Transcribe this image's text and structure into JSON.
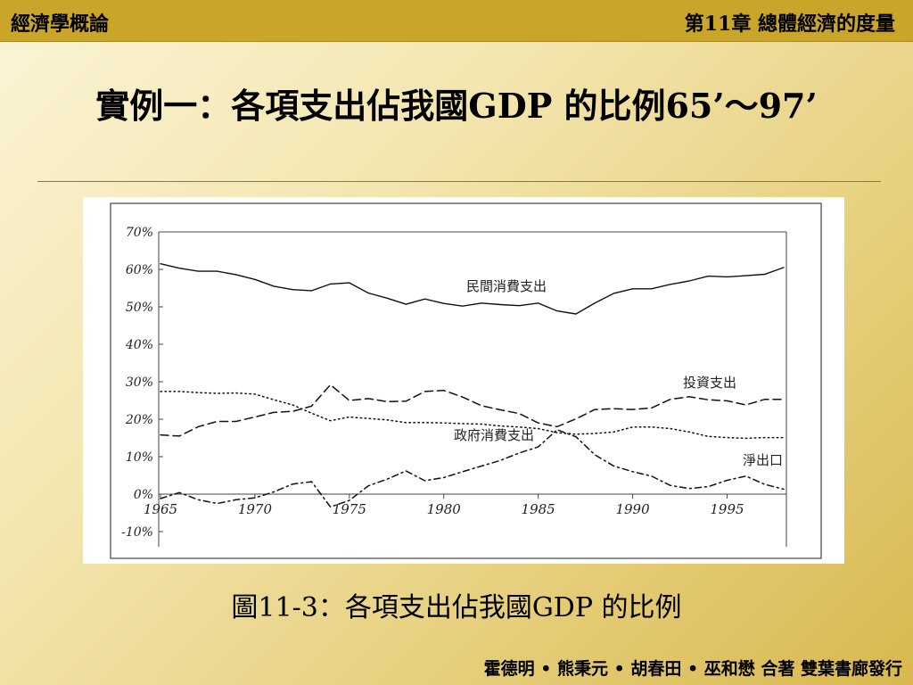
{
  "header": {
    "left": "經濟學概論",
    "right": "第11章  總體經濟的度量"
  },
  "slide": {
    "title": "實例一：各項支出佔我國GDP 的比例65’～97’",
    "caption": "圖11-3：各項支出佔我國GDP 的比例",
    "footer": "霍德明 • 熊秉元 • 胡春田 • 巫和懋  合著  雙葉書廊發行"
  },
  "chart_data": {
    "type": "line",
    "title": "",
    "xlabel": "",
    "ylabel": "",
    "xlim": [
      1965,
      1998
    ],
    "ylim": [
      -10,
      70
    ],
    "y_ticks": [
      "70%",
      "60%",
      "50%",
      "40%",
      "30%",
      "20%",
      "10%",
      "0%",
      "-10%"
    ],
    "y_tick_values": [
      70,
      60,
      50,
      40,
      30,
      20,
      10,
      0,
      -10
    ],
    "x_ticks": [
      "1965",
      "1970",
      "1975",
      "1980",
      "1985",
      "1990",
      "1995"
    ],
    "x_tick_values": [
      1965,
      1970,
      1975,
      1980,
      1985,
      1990,
      1995
    ],
    "grid": false,
    "legend": "inline labels",
    "x": [
      1965,
      1966,
      1967,
      1968,
      1969,
      1970,
      1971,
      1972,
      1973,
      1974,
      1975,
      1976,
      1977,
      1978,
      1979,
      1980,
      1981,
      1982,
      1983,
      1984,
      1985,
      1986,
      1987,
      1988,
      1989,
      1990,
      1991,
      1992,
      1993,
      1994,
      1995,
      1996,
      1997,
      1998
    ],
    "series": [
      {
        "name": "民間消費支出",
        "dash": "solid",
        "values": [
          61.5,
          60.3,
          59.5,
          59.5,
          58.6,
          57.3,
          55.5,
          54.6,
          54.3,
          56.1,
          56.4,
          53.7,
          52.3,
          50.7,
          52.1,
          50.9,
          50.2,
          51.0,
          50.6,
          50.3,
          51.0,
          48.9,
          48.1,
          51.0,
          53.6,
          54.8,
          54.8,
          56.0,
          56.9,
          58.2,
          58.0,
          58.3,
          58.7,
          60.5
        ]
      },
      {
        "name": "投資支出",
        "dash": "dashed",
        "values": [
          15.8,
          15.5,
          18.0,
          19.4,
          19.4,
          20.6,
          21.8,
          22.1,
          23.5,
          29.2,
          25.0,
          25.5,
          24.7,
          24.8,
          27.4,
          27.7,
          25.9,
          23.6,
          22.5,
          21.5,
          19.0,
          18.0,
          20.1,
          22.6,
          22.8,
          22.6,
          23.0,
          25.3,
          26.0,
          25.2,
          24.9,
          23.8,
          25.3,
          25.3
        ]
      },
      {
        "name": "政府消費支出",
        "dash": "dotted",
        "values": [
          27.4,
          27.4,
          27.1,
          26.9,
          27.0,
          26.7,
          25.2,
          23.8,
          21.6,
          19.6,
          20.6,
          20.2,
          19.8,
          19.1,
          19.1,
          19.0,
          18.8,
          18.7,
          18.2,
          17.9,
          17.5,
          16.4,
          16.0,
          16.2,
          16.6,
          17.9,
          17.9,
          17.5,
          16.6,
          15.4,
          15.1,
          14.9,
          15.1,
          15.1
        ]
      },
      {
        "name": "淨出口",
        "dash": "dashdot",
        "values": [
          -1.2,
          0.4,
          -1.5,
          -2.5,
          -1.5,
          -1.0,
          0.6,
          2.7,
          3.3,
          -3.4,
          -1.7,
          2.2,
          4.0,
          6.2,
          3.6,
          4.4,
          6.0,
          7.5,
          9.0,
          11.0,
          12.6,
          17.2,
          15.3,
          10.5,
          7.5,
          6.0,
          4.8,
          2.3,
          1.5,
          2.0,
          3.7,
          4.8,
          2.6,
          1.3
        ]
      }
    ]
  }
}
